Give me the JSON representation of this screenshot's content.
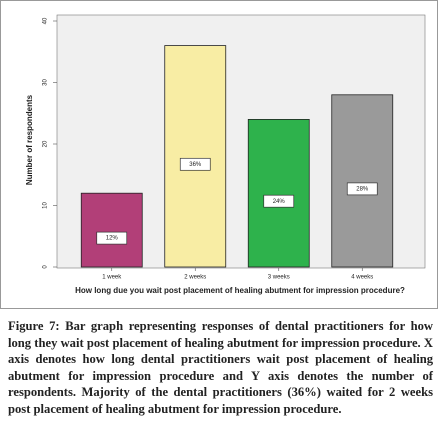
{
  "chart_data": {
    "type": "bar",
    "categories": [
      "1 week",
      "2 weeks",
      "3 weeks",
      "4 weeks"
    ],
    "values": [
      12,
      36,
      24,
      28
    ],
    "value_labels": [
      "12%",
      "36%",
      "24%",
      "28%"
    ],
    "colors": [
      "#b23f78",
      "#f8eda4",
      "#2eb24c",
      "#9a9a9a"
    ],
    "ylim": [
      0,
      40
    ],
    "yticks": [
      0,
      10,
      20,
      30,
      40
    ],
    "y_label": "Number of respondents",
    "x_label": "How long due you wait post placement of healing abutment for impression procedure?",
    "caption": "Figure 7: Bar graph representing responses of dental practitioners for how long they wait post placement of healing abutment for impression procedure. X axis denotes how long dental practitioners wait post placement of healing abutment for impression procedure and Y axis denotes the number of respondents. Majority of the dental practitioners (36%) waited for 2 weeks post placement of healing abutment for impression procedure."
  }
}
